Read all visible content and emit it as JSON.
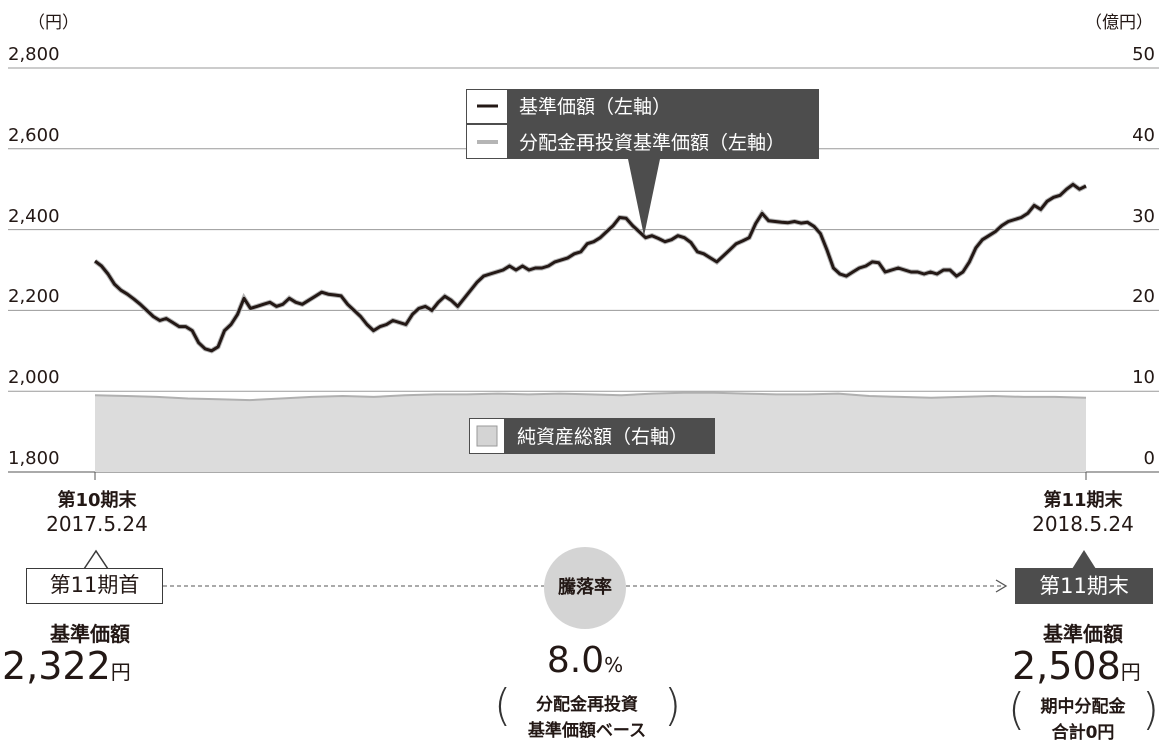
{
  "chart_data": {
    "type": "line",
    "left_axis": {
      "unit": "（円）",
      "ticks": [
        "2,800",
        "2,600",
        "2,400",
        "2,200",
        "2,000",
        "1,800"
      ],
      "range": [
        1800,
        2800
      ]
    },
    "right_axis": {
      "unit": "（億円）",
      "ticks": [
        "50",
        "40",
        "30",
        "20",
        "10",
        "0"
      ],
      "range": [
        0,
        50
      ]
    },
    "x_start": {
      "line1": "第10期末",
      "line2": "2017.5.24"
    },
    "x_end": {
      "line1": "第11期末",
      "line2": "2018.5.24"
    },
    "legend": {
      "nav": "基準価額（左軸）",
      "reinvest": "分配金再投資基準価額（左軸）",
      "assets": "純資産総額（右軸）"
    },
    "colors": {
      "nav": "#231815",
      "reinvest": "#b5b5b5",
      "assets_fill": "#dcdcdc",
      "legend_box": "#4d4d4d"
    },
    "series": [
      {
        "name": "基準価額（左軸）",
        "axis": "left",
        "values": [
          2322,
          2310,
          2290,
          2265,
          2250,
          2240,
          2228,
          2215,
          2200,
          2185,
          2175,
          2180,
          2170,
          2160,
          2160,
          2150,
          2120,
          2105,
          2100,
          2110,
          2150,
          2165,
          2190,
          2230,
          2205,
          2210,
          2215,
          2220,
          2210,
          2215,
          2230,
          2220,
          2215,
          2225,
          2235,
          2245,
          2240,
          2238,
          2236,
          2215,
          2200,
          2185,
          2165,
          2150,
          2160,
          2165,
          2175,
          2170,
          2165,
          2190,
          2205,
          2210,
          2200,
          2220,
          2235,
          2225,
          2210,
          2230,
          2250,
          2270,
          2285,
          2290,
          2295,
          2300,
          2310,
          2300,
          2310,
          2300,
          2305,
          2305,
          2310,
          2320,
          2325,
          2330,
          2340,
          2345,
          2365,
          2370,
          2380,
          2395,
          2410,
          2430,
          2428,
          2410,
          2395,
          2380,
          2385,
          2378,
          2370,
          2375,
          2385,
          2380,
          2368,
          2345,
          2340,
          2330,
          2320,
          2335,
          2350,
          2365,
          2372,
          2380,
          2415,
          2440,
          2422,
          2420,
          2418,
          2417,
          2420,
          2416,
          2418,
          2408,
          2390,
          2350,
          2305,
          2290,
          2285,
          2295,
          2305,
          2310,
          2320,
          2318,
          2295,
          2300,
          2305,
          2300,
          2295,
          2295,
          2290,
          2295,
          2290,
          2300,
          2300,
          2285,
          2295,
          2320,
          2355,
          2375,
          2385,
          2395,
          2410,
          2420,
          2425,
          2430,
          2440,
          2460,
          2450,
          2470,
          2480,
          2485,
          2500,
          2512,
          2500,
          2508
        ]
      }
    ],
    "assets": {
      "axis": "right",
      "values": [
        9.5,
        9.4,
        9.3,
        9.1,
        9.0,
        8.9,
        9.1,
        9.3,
        9.4,
        9.3,
        9.5,
        9.6,
        9.6,
        9.7,
        9.6,
        9.7,
        9.6,
        9.5,
        9.7,
        9.8,
        9.8,
        9.7,
        9.6,
        9.6,
        9.7,
        9.4,
        9.3,
        9.2,
        9.3,
        9.4,
        9.3,
        9.3,
        9.2
      ]
    }
  },
  "summary": {
    "start_label": "第11期首",
    "start_value_label": "基準価額",
    "start_value": "2,322",
    "start_unit": "円",
    "center_label": "騰落率",
    "change_value": "8.0",
    "change_unit": "%",
    "change_note_1": "分配金再投資",
    "change_note_2": "基準価額ベース",
    "end_label": "第11期末",
    "end_value_label": "基準価額",
    "end_value": "2,508",
    "end_unit": "円",
    "end_note_1": "期中分配金",
    "end_note_2": "合計0円"
  }
}
